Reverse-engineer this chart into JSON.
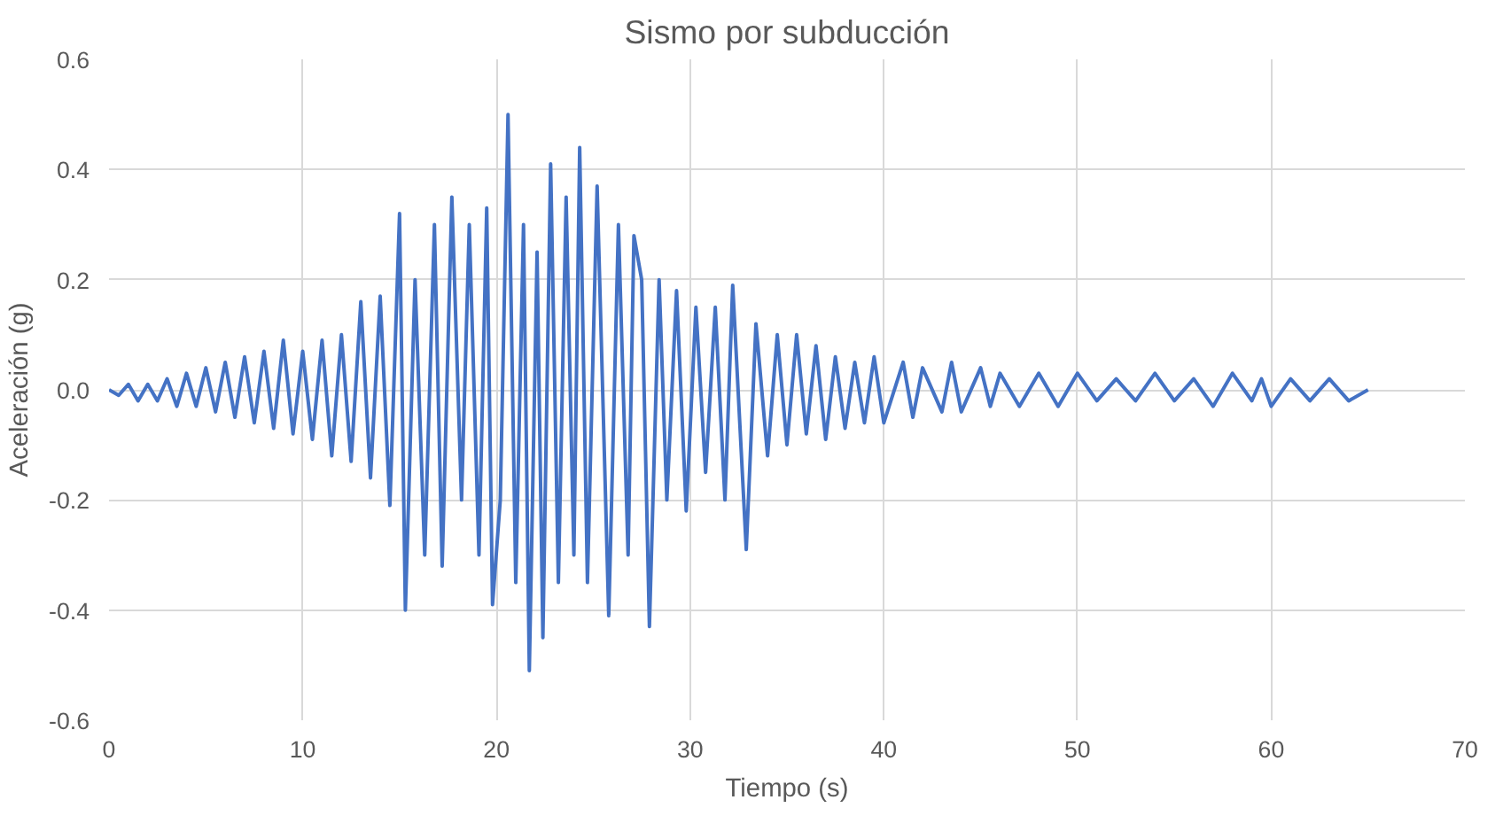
{
  "chart_data": {
    "type": "line",
    "title": "Sismo por subducción",
    "xlabel": "Tiempo (s)",
    "ylabel": "Aceleración (g)",
    "xlim": [
      0,
      70
    ],
    "xticks": [
      0,
      10,
      20,
      30,
      40,
      50,
      60,
      70
    ],
    "ylim": [
      -0.6,
      0.6
    ],
    "yticks": [
      {
        "value": -0.6,
        "label": "-0.6"
      },
      {
        "value": -0.4,
        "label": "-0.4"
      },
      {
        "value": -0.2,
        "label": "-0.2"
      },
      {
        "value": 0,
        "label": "0.0"
      },
      0.2,
      0.4,
      0.6
    ],
    "grid": true,
    "marker": "none",
    "line_style": "solid",
    "series": [
      {
        "color": "#4472c4",
        "x": [
          0,
          0.5,
          1,
          1.5,
          2,
          2.5,
          3,
          3.5,
          4,
          4.5,
          5,
          5.5,
          6,
          6.5,
          7,
          7.5,
          8,
          8.5,
          9,
          9.5,
          10,
          10.5,
          11,
          11.5,
          12,
          12.5,
          13,
          13.5,
          14,
          14.5,
          15,
          15.3,
          15.8,
          16.3,
          16.8,
          17.2,
          17.7,
          18.2,
          18.6,
          19.1,
          19.5,
          19.8,
          20.2,
          20.6,
          21.0,
          21.4,
          21.7,
          22.1,
          22.4,
          22.8,
          23.2,
          23.6,
          24.0,
          24.3,
          24.7,
          25.2,
          25.8,
          26.3,
          26.8,
          27.1,
          27.5,
          27.9,
          28.4,
          28.8,
          29.3,
          29.8,
          30.3,
          30.8,
          31.3,
          31.8,
          32.2,
          32.9,
          33.4,
          34,
          34.5,
          35,
          35.5,
          36,
          36.5,
          37,
          37.5,
          38,
          38.5,
          39,
          39.5,
          40,
          41,
          41.5,
          42,
          43,
          43.5,
          44,
          45,
          45.5,
          46,
          47,
          48,
          49,
          50,
          51,
          52,
          53,
          54,
          55,
          56,
          57,
          58,
          59,
          59.5,
          60,
          61,
          62,
          63,
          64,
          65
        ],
        "values": [
          0,
          -0.01,
          0.01,
          -0.02,
          0.01,
          -0.02,
          0.02,
          -0.03,
          0.03,
          -0.03,
          0.04,
          -0.04,
          0.05,
          -0.05,
          0.06,
          -0.06,
          0.07,
          -0.07,
          0.09,
          -0.08,
          0.07,
          -0.09,
          0.09,
          -0.12,
          0.1,
          -0.13,
          0.16,
          -0.16,
          0.17,
          -0.21,
          0.32,
          -0.4,
          0.2,
          -0.3,
          0.3,
          -0.32,
          0.35,
          -0.2,
          0.3,
          -0.3,
          0.33,
          -0.39,
          -0.2,
          0.5,
          -0.35,
          0.3,
          -0.51,
          0.25,
          -0.45,
          0.41,
          -0.35,
          0.35,
          -0.3,
          0.44,
          -0.35,
          0.37,
          -0.41,
          0.3,
          -0.3,
          0.28,
          0.2,
          -0.43,
          0.2,
          -0.2,
          0.18,
          -0.22,
          0.15,
          -0.15,
          0.15,
          -0.2,
          0.19,
          -0.29,
          0.12,
          -0.12,
          0.1,
          -0.1,
          0.1,
          -0.08,
          0.08,
          -0.09,
          0.06,
          -0.07,
          0.05,
          -0.06,
          0.06,
          -0.06,
          0.05,
          -0.05,
          0.04,
          -0.04,
          0.05,
          -0.04,
          0.04,
          -0.03,
          0.03,
          -0.03,
          0.03,
          -0.03,
          0.03,
          -0.02,
          0.02,
          -0.02,
          0.03,
          -0.02,
          0.02,
          -0.03,
          0.03,
          -0.02,
          0.02,
          -0.03,
          0.02,
          -0.02,
          0.02,
          -0.02,
          0
        ]
      }
    ]
  }
}
